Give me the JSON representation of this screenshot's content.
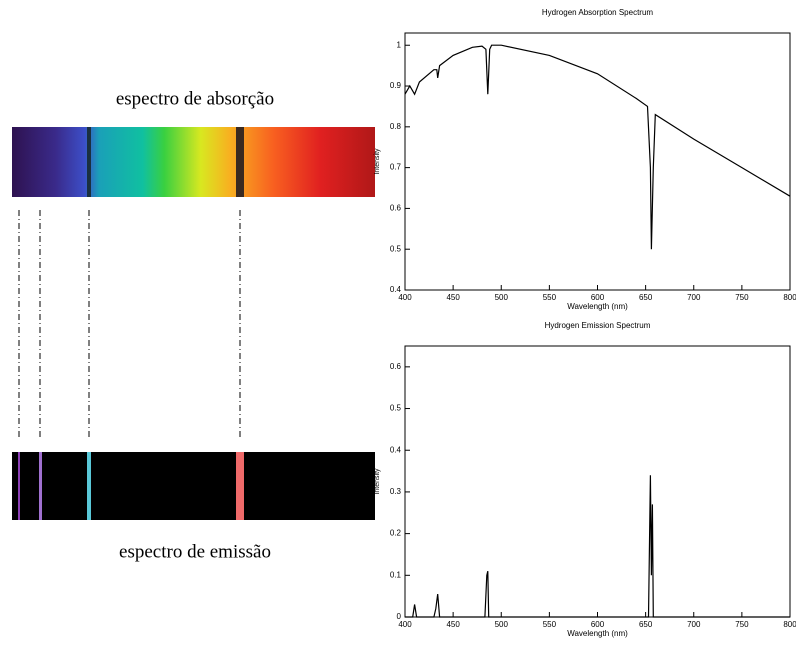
{
  "left": {
    "absorption_label": "espectro de absorção",
    "emission_label": "espectro de emissão"
  },
  "chart_data": [
    {
      "type": "line",
      "title": "Hydrogen Absorption Spectrum",
      "x_label": "Wavelength (nm)",
      "y_label": "Intensity",
      "color": "#000000",
      "x": [
        400,
        405,
        410,
        415,
        430,
        433,
        434,
        436,
        450,
        470,
        480,
        484,
        486,
        488,
        490,
        500,
        550,
        600,
        640,
        652,
        655,
        656,
        658,
        660,
        700,
        750,
        800
      ],
      "values": [
        0.88,
        0.9,
        0.88,
        0.91,
        0.94,
        0.94,
        0.92,
        0.95,
        0.975,
        0.995,
        0.998,
        0.99,
        0.88,
        0.99,
        1.0,
        1.0,
        0.975,
        0.93,
        0.87,
        0.85,
        0.7,
        0.5,
        0.7,
        0.83,
        0.77,
        0.7,
        0.63
      ],
      "xlim": [
        400,
        800
      ],
      "ylim": [
        0.4,
        1.03
      ],
      "xticks": [
        400,
        450,
        500,
        550,
        600,
        650,
        700,
        750,
        800
      ],
      "yticks": [
        0.4,
        0.5,
        0.6,
        0.7,
        0.8,
        0.9,
        1
      ]
    },
    {
      "type": "line",
      "title": "Hydrogen Emission Spectrum",
      "x_label": "Wavelength (nm)",
      "y_label": "Intensity",
      "color": "#000000",
      "x": [
        400,
        408,
        410,
        412,
        430,
        432,
        434,
        436,
        483,
        485,
        486,
        487,
        489,
        653,
        655,
        656,
        657,
        658,
        660,
        800
      ],
      "values": [
        0,
        0,
        0.03,
        0,
        0,
        0.02,
        0.055,
        0,
        0,
        0.1,
        0.11,
        0,
        0,
        0,
        0.34,
        0.1,
        0.27,
        0,
        0,
        0
      ],
      "xlim": [
        400,
        800
      ],
      "ylim": [
        0,
        0.65
      ],
      "xticks": [
        400,
        450,
        500,
        550,
        600,
        650,
        700,
        750,
        800
      ],
      "yticks": [
        0,
        0.1,
        0.2,
        0.3,
        0.4,
        0.5,
        0.6
      ]
    }
  ]
}
